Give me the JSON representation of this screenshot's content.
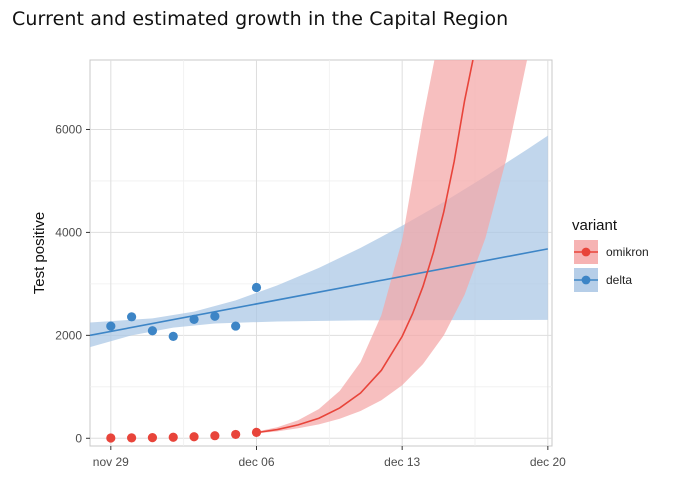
{
  "page_title": "Current and estimated growth in the Capital Region",
  "chart_data": {
    "type": "line",
    "title": "Current and estimated growth in the Capital Region",
    "xlabel": "",
    "ylabel": "Test positive",
    "xlim": [
      -1,
      21.2
    ],
    "ylim": [
      -150,
      7350
    ],
    "x_ticks": [
      {
        "value": 0,
        "label": "nov 29"
      },
      {
        "value": 7,
        "label": "dec 06"
      },
      {
        "value": 14,
        "label": "dec 13"
      },
      {
        "value": 21,
        "label": "dec 20"
      }
    ],
    "y_ticks": [
      0,
      2000,
      4000,
      6000
    ],
    "grid": true,
    "legend": {
      "title": "variant",
      "position": "right",
      "entries": [
        {
          "name": "omikron",
          "color": "#e8443a",
          "fill": "#f4a6a6"
        },
        {
          "name": "delta",
          "color": "#3d85c6",
          "fill": "#a9c6e4"
        }
      ]
    },
    "series": [
      {
        "name": "omikron",
        "color": "#e8443a",
        "points": [
          {
            "x": 0,
            "y": 5
          },
          {
            "x": 1,
            "y": 8
          },
          {
            "x": 2,
            "y": 12
          },
          {
            "x": 3,
            "y": 20
          },
          {
            "x": 4,
            "y": 30
          },
          {
            "x": 5,
            "y": 50
          },
          {
            "x": 6,
            "y": 75
          },
          {
            "x": 7,
            "y": 115
          }
        ],
        "fit": [
          {
            "x": 7,
            "y": 110
          },
          {
            "x": 8,
            "y": 170
          },
          {
            "x": 9,
            "y": 260
          },
          {
            "x": 10,
            "y": 390
          },
          {
            "x": 11,
            "y": 590
          },
          {
            "x": 12,
            "y": 880
          },
          {
            "x": 13,
            "y": 1320
          },
          {
            "x": 14,
            "y": 1980
          },
          {
            "x": 14.5,
            "y": 2420
          },
          {
            "x": 15,
            "y": 2950
          },
          {
            "x": 15.5,
            "y": 3610
          },
          {
            "x": 16,
            "y": 4400
          },
          {
            "x": 16.5,
            "y": 5380
          },
          {
            "x": 17,
            "y": 6560
          },
          {
            "x": 17.4,
            "y": 7350
          }
        ],
        "band_upper": [
          {
            "x": 7,
            "y": 130
          },
          {
            "x": 8,
            "y": 215
          },
          {
            "x": 9,
            "y": 350
          },
          {
            "x": 10,
            "y": 570
          },
          {
            "x": 11,
            "y": 920
          },
          {
            "x": 12,
            "y": 1480
          },
          {
            "x": 13,
            "y": 2390
          },
          {
            "x": 14,
            "y": 3850
          },
          {
            "x": 15,
            "y": 6210
          },
          {
            "x": 15.55,
            "y": 7350
          }
        ],
        "band_lower": [
          {
            "x": 7,
            "y": 95
          },
          {
            "x": 8,
            "y": 135
          },
          {
            "x": 9,
            "y": 195
          },
          {
            "x": 10,
            "y": 270
          },
          {
            "x": 11,
            "y": 380
          },
          {
            "x": 12,
            "y": 530
          },
          {
            "x": 13,
            "y": 740
          },
          {
            "x": 14,
            "y": 1030
          },
          {
            "x": 15,
            "y": 1440
          },
          {
            "x": 16,
            "y": 2000
          },
          {
            "x": 17,
            "y": 2790
          },
          {
            "x": 18,
            "y": 3890
          },
          {
            "x": 19,
            "y": 5420
          },
          {
            "x": 20,
            "y": 7350
          }
        ]
      },
      {
        "name": "delta",
        "color": "#3d85c6",
        "points": [
          {
            "x": 0,
            "y": 2180
          },
          {
            "x": 1,
            "y": 2360
          },
          {
            "x": 2,
            "y": 2090
          },
          {
            "x": 3,
            "y": 1980
          },
          {
            "x": 4,
            "y": 2310
          },
          {
            "x": 5,
            "y": 2370
          },
          {
            "x": 6,
            "y": 2180
          },
          {
            "x": 7,
            "y": 2930
          }
        ],
        "fit": [
          {
            "x": -1,
            "y": 2000
          },
          {
            "x": 21,
            "y": 3680
          }
        ],
        "band_upper": [
          {
            "x": -1,
            "y": 2250
          },
          {
            "x": 2,
            "y": 2330
          },
          {
            "x": 4,
            "y": 2460
          },
          {
            "x": 6,
            "y": 2680
          },
          {
            "x": 8,
            "y": 2970
          },
          {
            "x": 10,
            "y": 3310
          },
          {
            "x": 12,
            "y": 3700
          },
          {
            "x": 14,
            "y": 4130
          },
          {
            "x": 16,
            "y": 4590
          },
          {
            "x": 18,
            "y": 5090
          },
          {
            "x": 20,
            "y": 5610
          },
          {
            "x": 21,
            "y": 5880
          }
        ],
        "band_lower": [
          {
            "x": -1,
            "y": 1770
          },
          {
            "x": 1,
            "y": 2000
          },
          {
            "x": 3,
            "y": 2150
          },
          {
            "x": 5,
            "y": 2230
          },
          {
            "x": 8,
            "y": 2270
          },
          {
            "x": 12,
            "y": 2290
          },
          {
            "x": 16,
            "y": 2295
          },
          {
            "x": 21,
            "y": 2300
          }
        ]
      }
    ]
  }
}
